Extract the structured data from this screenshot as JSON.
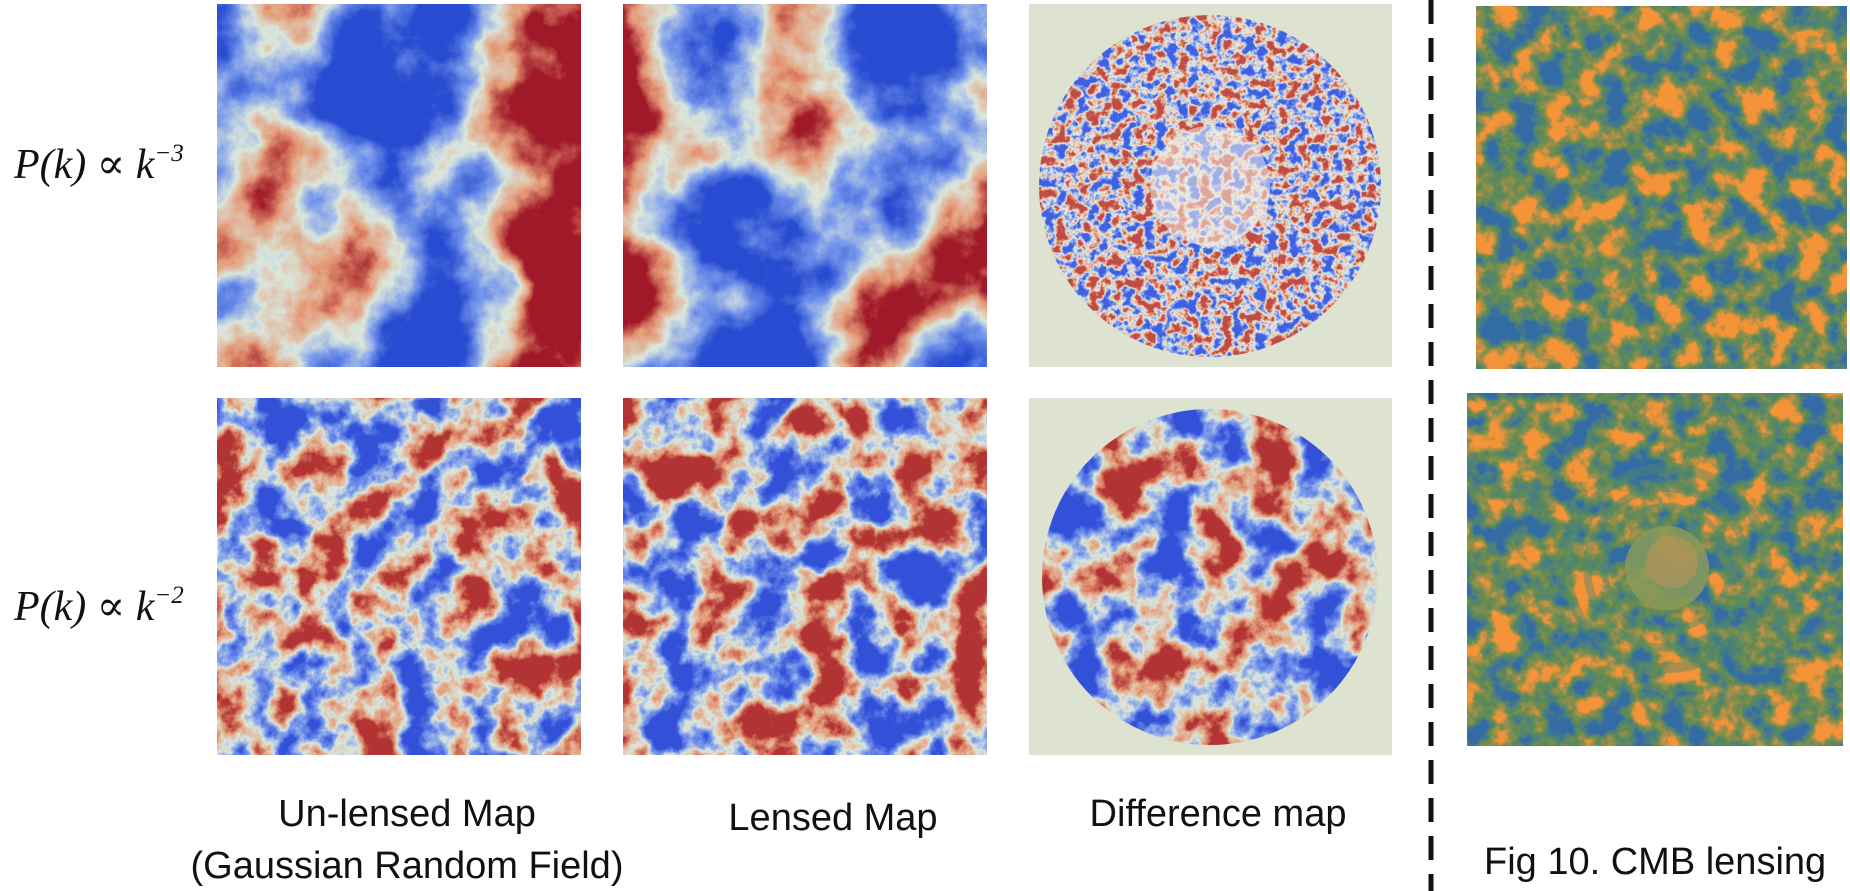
{
  "row_labels": [
    {
      "base": "P(k) ∝ k",
      "exponent": "−3"
    },
    {
      "base": "P(k) ∝ k",
      "exponent": "−2"
    }
  ],
  "column_labels": [
    [
      "Un-lensed Map",
      "(Gaussian Random Field)"
    ],
    [
      "Lensed Map"
    ],
    [
      "Difference map"
    ]
  ],
  "caption": "Fig 10. CMB lensing"
}
